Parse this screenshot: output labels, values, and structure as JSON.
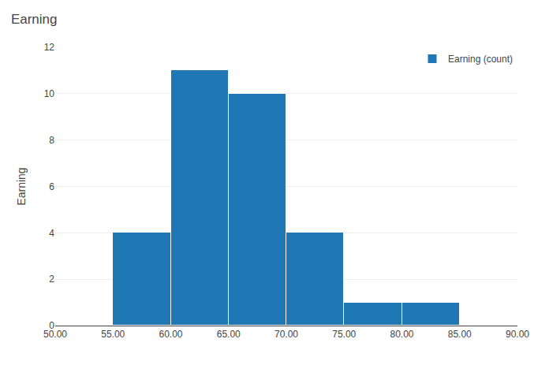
{
  "chart_data": {
    "type": "histogram",
    "title": "Earning",
    "ylabel": "Earning",
    "bins": [
      50,
      55,
      60,
      65,
      70,
      75,
      80,
      85,
      90
    ],
    "series": [
      {
        "name": "Earning (count)",
        "values": [
          0,
          4,
          11,
          10,
          4,
          1,
          1,
          0
        ]
      }
    ],
    "xlim": [
      50,
      90
    ],
    "xticks": [
      {
        "value": 50,
        "label": "50.00"
      },
      {
        "value": 55,
        "label": "55.00"
      },
      {
        "value": 60,
        "label": "60.00"
      },
      {
        "value": 65,
        "label": "65.00"
      },
      {
        "value": 70,
        "label": "70.00"
      },
      {
        "value": 75,
        "label": "75.00"
      },
      {
        "value": 80,
        "label": "80.00"
      },
      {
        "value": 85,
        "label": "85.00"
      },
      {
        "value": 90,
        "label": "90.00"
      }
    ],
    "ylim": [
      0,
      12
    ],
    "yticks": [
      0,
      2,
      4,
      6,
      8,
      10,
      12
    ],
    "grid": true,
    "legend": "upper right"
  }
}
